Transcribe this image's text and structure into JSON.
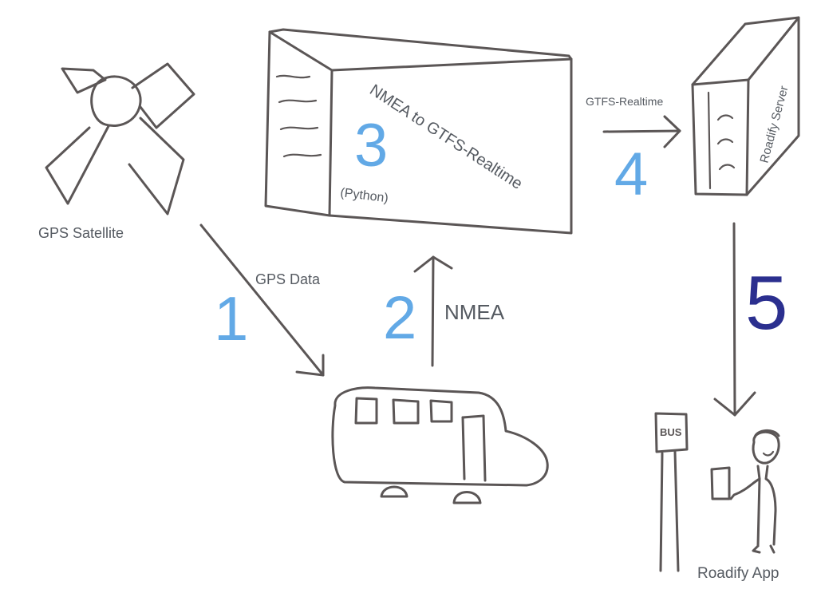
{
  "labels": {
    "gps_satellite": "GPS Satellite",
    "gps_data": "GPS Data",
    "nmea": "NMEA",
    "converter_title": "NMEA to GTFS-Realtime",
    "python": "(Python)",
    "gtfs_realtime": "GTFS-Realtime",
    "roadify_server": "Roadify Server",
    "roadify_app": "Roadify App",
    "bus_sign": "BUS"
  },
  "steps": [
    "1",
    "2",
    "3",
    "4",
    "5"
  ],
  "colors": {
    "step_light": "#62a9e6",
    "step_dark": "#2b2f8f",
    "stroke": "#5b5656",
    "label": "#555a61"
  }
}
